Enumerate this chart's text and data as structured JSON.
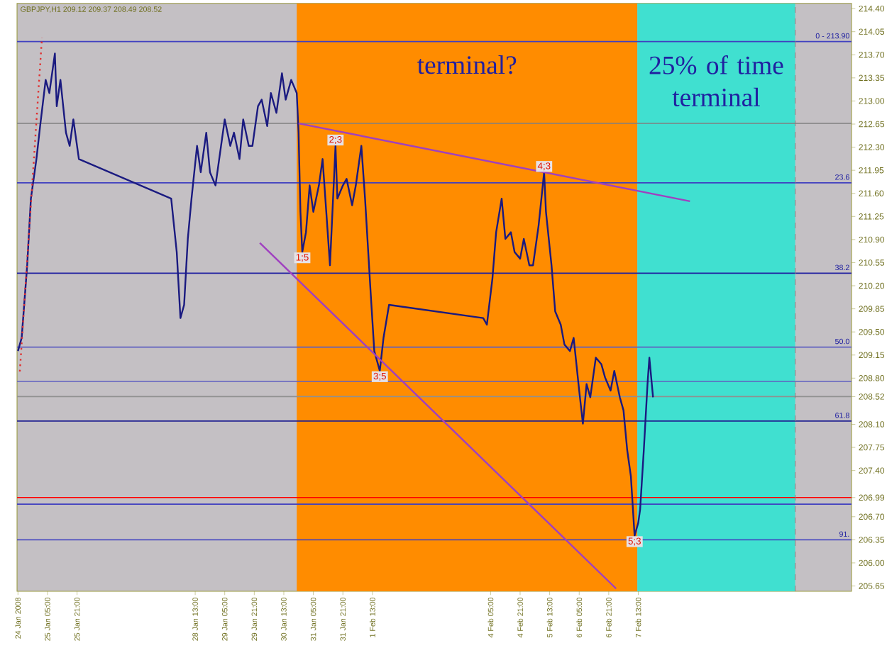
{
  "chart_data": {
    "type": "line",
    "title": "GBPJPY,H1 209.12 209.37 208.49 208.52",
    "xlim": [
      "2008-01-24T12:30",
      "2008-02-12T08:30"
    ],
    "ylim": [
      205.57,
      214.48
    ],
    "xticks": [
      {
        "value": "2008-01-24T13:00",
        "label": "24 Jan 2008"
      },
      {
        "value": "2008-01-25T05:00",
        "label": "25 Jan 05:00"
      },
      {
        "value": "2008-01-25T21:00",
        "label": "25 Jan 21:00"
      },
      {
        "value": "2008-01-28T13:00",
        "label": "28 Jan 13:00"
      },
      {
        "value": "2008-01-29T05:00",
        "label": "29 Jan 05:00"
      },
      {
        "value": "2008-01-29T21:00",
        "label": "29 Jan 21:00"
      },
      {
        "value": "2008-01-30T13:00",
        "label": "30 Jan 13:00"
      },
      {
        "value": "2008-01-31T05:00",
        "label": "31 Jan 05:00"
      },
      {
        "value": "2008-01-31T21:00",
        "label": "31 Jan 21:00"
      },
      {
        "value": "2008-02-01T13:00",
        "label": "1 Feb 13:00"
      },
      {
        "value": "2008-02-04T05:00",
        "label": "4 Feb 05:00"
      },
      {
        "value": "2008-02-04T21:00",
        "label": "4 Feb 21:00"
      },
      {
        "value": "2008-02-05T13:00",
        "label": "5 Feb 13:00"
      },
      {
        "value": "2008-02-06T05:00",
        "label": "6 Feb 05:00"
      },
      {
        "value": "2008-02-06T21:00",
        "label": "6 Feb 21:00"
      },
      {
        "value": "2008-02-07T13:00",
        "label": "7 Feb 13:00"
      }
    ],
    "yticks": [
      {
        "value": 214.4,
        "label": "214.40"
      },
      {
        "value": 214.05,
        "label": "214.05"
      },
      {
        "value": 213.7,
        "label": "213.70"
      },
      {
        "value": 213.35,
        "label": "213.35"
      },
      {
        "value": 213.0,
        "label": "213.00"
      },
      {
        "value": 212.65,
        "label": "212.65"
      },
      {
        "value": 212.3,
        "label": "212.30"
      },
      {
        "value": 211.95,
        "label": "211.95"
      },
      {
        "value": 211.6,
        "label": "211.60"
      },
      {
        "value": 211.25,
        "label": "211.25"
      },
      {
        "value": 210.9,
        "label": "210.90"
      },
      {
        "value": 210.55,
        "label": "210.55"
      },
      {
        "value": 210.2,
        "label": "210.20"
      },
      {
        "value": 209.85,
        "label": "209.85"
      },
      {
        "value": 209.5,
        "label": "209.50"
      },
      {
        "value": 209.15,
        "label": "209.15"
      },
      {
        "value": 208.8,
        "label": "208.80"
      },
      {
        "value": 208.52,
        "label": "208.52"
      },
      {
        "value": 208.1,
        "label": "208.10"
      },
      {
        "value": 207.75,
        "label": "207.75"
      },
      {
        "value": 207.4,
        "label": "207.40"
      },
      {
        "value": 206.99,
        "label": "206.99"
      },
      {
        "value": 206.7,
        "label": "206.70"
      },
      {
        "value": 206.35,
        "label": "206.35"
      },
      {
        "value": 206.0,
        "label": "206.00"
      },
      {
        "value": 205.65,
        "label": "205.65"
      }
    ],
    "bands": [
      {
        "axis": "x",
        "from": "2008-01-30T20:00",
        "to": "2008-02-07T12:30",
        "label": "terminal?",
        "color": "#ff8c00"
      },
      {
        "axis": "x",
        "from": "2008-02-07T12:30",
        "to": "2008-02-11T02:00",
        "label": "25% of time terminal",
        "color": "#40e0d0"
      }
    ],
    "ref_lines": [
      {
        "axis": "y",
        "value": 213.9,
        "color": "#4040c0"
      },
      {
        "axis": "y",
        "value": 212.66,
        "color": "#808080"
      },
      {
        "axis": "y",
        "value": 211.76,
        "color": "#4040c0"
      },
      {
        "axis": "y",
        "value": 210.39,
        "color": "#2020a0"
      },
      {
        "axis": "y",
        "value": 209.27,
        "color": "#6060c0"
      },
      {
        "axis": "y",
        "value": 208.75,
        "color": "#6060c0"
      },
      {
        "axis": "y",
        "value": 208.52,
        "color": "#909090"
      },
      {
        "axis": "y",
        "value": 208.15,
        "color": "#202090"
      },
      {
        "axis": "y",
        "value": 206.99,
        "color": "#ff0000"
      },
      {
        "axis": "y",
        "value": 206.89,
        "color": "#4040c0"
      },
      {
        "axis": "y",
        "value": 206.35,
        "color": "#4040c0"
      },
      {
        "axis": "x",
        "value": "2008-02-11T02:00",
        "color": "#808080",
        "line_style": "dashed"
      }
    ],
    "series": [
      {
        "color": "#1a1a80",
        "line_style": "solid",
        "x": [
          "2008-01-24T13:00",
          "2008-01-24T15:00",
          "2008-01-24T18:00",
          "2008-01-24T20:00",
          "2008-01-24T23:00",
          "2008-01-25T01:00",
          "2008-01-25T04:00",
          "2008-01-25T06:00",
          "2008-01-25T09:00",
          "2008-01-25T10:00",
          "2008-01-25T12:00",
          "2008-01-25T15:00",
          "2008-01-25T17:00",
          "2008-01-25T19:00",
          "2008-01-25T22:00",
          "2008-01-28T00:00",
          "2008-01-28T03:00",
          "2008-01-28T05:00",
          "2008-01-28T07:00",
          "2008-01-28T09:00",
          "2008-01-28T11:00",
          "2008-01-28T14:00",
          "2008-01-28T16:00",
          "2008-01-28T19:00",
          "2008-01-28T21:00",
          "2008-01-29T00:00",
          "2008-01-29T03:00",
          "2008-01-29T05:00",
          "2008-01-29T08:00",
          "2008-01-29T10:00",
          "2008-01-29T13:00",
          "2008-01-29T15:00",
          "2008-01-29T18:00",
          "2008-01-29T20:00",
          "2008-01-29T23:00",
          "2008-01-30T01:00",
          "2008-01-30T04:00",
          "2008-01-30T06:00",
          "2008-01-30T09:00",
          "2008-01-30T12:00",
          "2008-01-30T14:00",
          "2008-01-30T17:00",
          "2008-01-30T20:00",
          "2008-01-30T21:00",
          "2008-01-30T22:00",
          "2008-01-30T23:00",
          "2008-01-31T01:00",
          "2008-01-31T03:00",
          "2008-01-31T05:00",
          "2008-01-31T08:00",
          "2008-01-31T10:00",
          "2008-01-31T12:00",
          "2008-01-31T14:00",
          "2008-01-31T17:00",
          "2008-01-31T18:00",
          "2008-01-31T21:00",
          "2008-01-31T23:00",
          "2008-02-01T02:00",
          "2008-02-01T04:00",
          "2008-02-01T07:00",
          "2008-02-01T09:00",
          "2008-02-01T12:00",
          "2008-02-01T14:00",
          "2008-02-01T17:00",
          "2008-02-01T19:00",
          "2008-02-01T22:00",
          "2008-02-04T01:00",
          "2008-02-04T03:00",
          "2008-02-04T06:00",
          "2008-02-04T08:00",
          "2008-02-04T11:00",
          "2008-02-04T13:00",
          "2008-02-04T16:00",
          "2008-02-04T18:00",
          "2008-02-04T21:00",
          "2008-02-04T23:00",
          "2008-02-05T02:00",
          "2008-02-05T04:00",
          "2008-02-05T07:00",
          "2008-02-05T10:00",
          "2008-02-05T11:00",
          "2008-02-05T14:00",
          "2008-02-05T16:00",
          "2008-02-05T19:00",
          "2008-02-05T21:00",
          "2008-02-06T00:00",
          "2008-02-06T02:00",
          "2008-02-06T05:00",
          "2008-02-06T07:00",
          "2008-02-06T09:00",
          "2008-02-06T11:00",
          "2008-02-06T14:00",
          "2008-02-06T17:00",
          "2008-02-06T19:00",
          "2008-02-06T22:00",
          "2008-02-07T00:00",
          "2008-02-07T03:00",
          "2008-02-07T05:00",
          "2008-02-07T07:00",
          "2008-02-07T09:00",
          "2008-02-07T11:00",
          "2008-02-07T13:00",
          "2008-02-07T14:00",
          "2008-02-07T16:00",
          "2008-02-07T18:00",
          "2008-02-07T19:00",
          "2008-02-07T21:00"
        ],
        "values": [
          209.21,
          209.41,
          210.51,
          211.52,
          212.12,
          212.62,
          213.32,
          213.12,
          213.72,
          212.92,
          213.32,
          212.52,
          212.32,
          212.72,
          212.12,
          211.52,
          210.71,
          209.71,
          209.91,
          210.91,
          211.52,
          212.32,
          211.92,
          212.52,
          211.92,
          211.72,
          212.32,
          212.72,
          212.32,
          212.52,
          212.12,
          212.72,
          212.32,
          212.32,
          212.92,
          213.02,
          212.62,
          213.12,
          212.82,
          213.42,
          213.02,
          213.32,
          213.12,
          212.52,
          211.32,
          210.71,
          211.01,
          211.72,
          211.32,
          211.72,
          212.12,
          211.32,
          210.51,
          212.32,
          211.52,
          211.72,
          211.82,
          211.42,
          211.72,
          212.32,
          211.52,
          210.11,
          209.21,
          208.91,
          209.41,
          209.91,
          209.71,
          209.61,
          210.31,
          211.01,
          211.52,
          210.91,
          211.01,
          210.71,
          210.61,
          210.91,
          210.51,
          210.51,
          211.11,
          211.92,
          211.32,
          210.51,
          209.81,
          209.61,
          209.31,
          209.21,
          209.41,
          208.61,
          208.11,
          208.71,
          208.51,
          209.11,
          209.01,
          208.81,
          208.61,
          208.91,
          208.51,
          208.31,
          207.71,
          207.31,
          206.41,
          206.61,
          206.81,
          207.71,
          208.71,
          209.11,
          208.51
        ]
      },
      {
        "color": "#a040c0",
        "line_style": "solid",
        "x": [
          "2008-01-30T21:00",
          "2008-02-08T17:00"
        ],
        "values": [
          212.66,
          211.48
        ]
      },
      {
        "color": "#a040c0",
        "line_style": "solid",
        "x": [
          "2008-01-30T00:00",
          "2008-02-07T01:00"
        ],
        "values": [
          210.85,
          205.61
        ]
      },
      {
        "color": "#e03030",
        "line_style": "dotted",
        "x": [
          "2008-01-24T14:00",
          "2008-01-25T02:00"
        ],
        "values": [
          208.9,
          213.96
        ]
      }
    ],
    "annotations": [
      {
        "text": "1;5",
        "x": "2008-01-30T23:00",
        "y": 210.71
      },
      {
        "text": "2;3",
        "x": "2008-01-31T17:00",
        "y": 212.32
      },
      {
        "text": "3;5",
        "x": "2008-02-01T17:00",
        "y": 208.91
      },
      {
        "text": "4;3",
        "x": "2008-02-05T10:00",
        "y": 211.92
      },
      {
        "text": "5;3",
        "x": "2008-02-07T11:00",
        "y": 206.41
      },
      {
        "text": "0 - 213.90",
        "x": "2008-02-12T08:30",
        "y": 213.9
      },
      {
        "text": "23.6",
        "x": "2008-02-12T08:30",
        "y": 211.76
      },
      {
        "text": "38.2",
        "x": "2008-02-12T08:30",
        "y": 210.39
      },
      {
        "text": "50.0",
        "x": "2008-02-12T08:30",
        "y": 209.27
      },
      {
        "text": "61.8",
        "x": "2008-02-12T08:30",
        "y": 208.15
      },
      {
        "text": "91.",
        "x": "2008-02-12T08:30",
        "y": 206.35
      }
    ]
  }
}
